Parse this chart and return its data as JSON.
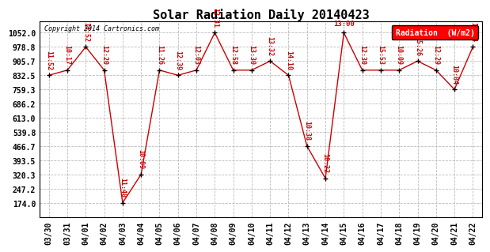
{
  "title": "Solar Radiation Daily 20140423",
  "copyright": "Copyright 2014 Cartronics.com",
  "legend_label": "Radiation  (W/m2)",
  "x_labels": [
    "03/30",
    "03/31",
    "04/01",
    "04/02",
    "04/03",
    "04/04",
    "04/05",
    "04/06",
    "04/07",
    "04/08",
    "04/09",
    "04/10",
    "04/11",
    "04/12",
    "04/13",
    "04/14",
    "04/15",
    "04/16",
    "04/17",
    "04/18",
    "04/19",
    "04/20",
    "04/21",
    "04/22"
  ],
  "y_values": [
    832.5,
    859.0,
    978.8,
    859.0,
    174.0,
    320.3,
    859.0,
    832.5,
    859.0,
    1052.0,
    859.0,
    859.0,
    905.7,
    832.5,
    466.7,
    300.0,
    1052.0,
    859.0,
    859.0,
    859.0,
    905.7,
    859.0,
    759.3,
    978.8
  ],
  "time_labels": [
    "11:52",
    "10:17",
    "13:52",
    "12:20",
    "11:40",
    "10:09",
    "11:26",
    "12:39",
    "12:03",
    "12:31",
    "12:58",
    "13:30",
    "13:32",
    "14:10",
    "10:38",
    "10:22",
    "13:00",
    "12:30",
    "15:53",
    "10:09",
    "15:26",
    "12:29",
    "10:04",
    "14:14"
  ],
  "peak_idx": 16,
  "ylim_min": 100.0,
  "ylim_max": 1110.0,
  "yticks": [
    174.0,
    247.2,
    320.3,
    393.5,
    466.7,
    539.8,
    613.0,
    686.2,
    759.3,
    832.5,
    905.7,
    978.8,
    1052.0
  ],
  "line_color": "#cc0000",
  "marker_color": "#000000",
  "bg_color": "#ffffff",
  "grid_color": "#bbbbbb",
  "title_fontsize": 11,
  "tick_fontsize": 7,
  "label_fontsize": 6
}
